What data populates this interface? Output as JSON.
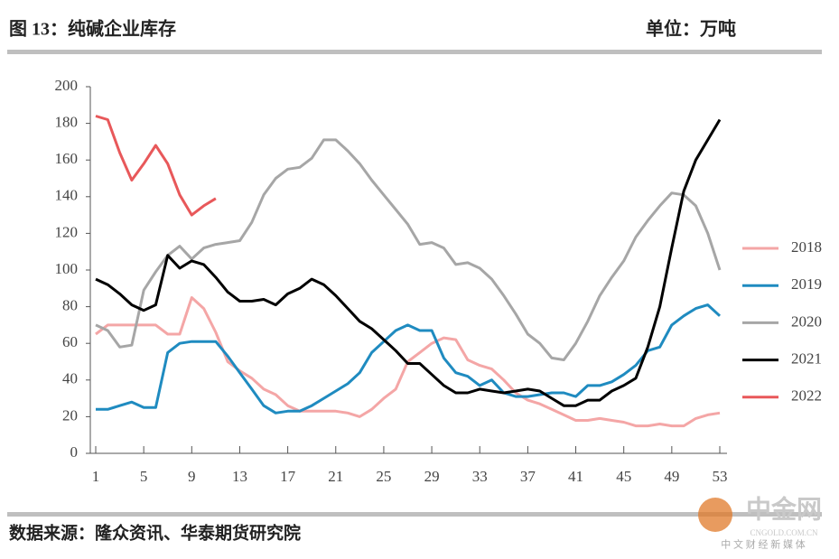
{
  "header": {
    "title": "图 13：纯碱企业库存",
    "unit": "单位：万吨"
  },
  "footer": {
    "source": "数据来源：隆众资讯、华泰期货研究院"
  },
  "watermark": {
    "brand": "中金网",
    "url": "CNGOLD.COM.CN",
    "tagline": "中 文 财 经 新 媒 体"
  },
  "chart_data": {
    "type": "line",
    "x": [
      1,
      2,
      3,
      4,
      5,
      6,
      7,
      8,
      9,
      10,
      11,
      12,
      13,
      14,
      15,
      16,
      17,
      18,
      19,
      20,
      21,
      22,
      23,
      24,
      25,
      26,
      27,
      28,
      29,
      30,
      31,
      32,
      33,
      34,
      35,
      36,
      37,
      38,
      39,
      40,
      41,
      42,
      43,
      44,
      45,
      46,
      47,
      48,
      49,
      50,
      51,
      52,
      53
    ],
    "xlim": [
      1,
      53
    ],
    "xticks": [
      1,
      5,
      9,
      13,
      17,
      21,
      25,
      29,
      33,
      37,
      41,
      45,
      49,
      53
    ],
    "ylim": [
      0,
      200
    ],
    "yticks": [
      0,
      20,
      40,
      60,
      80,
      100,
      120,
      140,
      160,
      180,
      200
    ],
    "legend": "right",
    "series": [
      {
        "name": "2018",
        "color": "#f4a6a6",
        "values": [
          65,
          70,
          70,
          70,
          70,
          70,
          65,
          65,
          85,
          79,
          66,
          50,
          45,
          41,
          35,
          32,
          26,
          23,
          23,
          23,
          23,
          22,
          20,
          24,
          30,
          35,
          50,
          55,
          60,
          63,
          62,
          51,
          48,
          46,
          40,
          33,
          29,
          27,
          24,
          21,
          18,
          18,
          19,
          18,
          17,
          15,
          15,
          16,
          15,
          15,
          19,
          21,
          22
        ]
      },
      {
        "name": "2019",
        "color": "#1f8bc0",
        "values": [
          24,
          24,
          26,
          28,
          25,
          25,
          55,
          60,
          61,
          61,
          61,
          53,
          44,
          35,
          26,
          22,
          23,
          23,
          26,
          30,
          34,
          38,
          44,
          55,
          61,
          67,
          70,
          67,
          67,
          52,
          44,
          42,
          37,
          40,
          33,
          31,
          31,
          32,
          33,
          33,
          31,
          37,
          37,
          39,
          43,
          48,
          56,
          58,
          70,
          75,
          79,
          81,
          75
        ]
      },
      {
        "name": "2020",
        "color": "#a6a6a6",
        "values": [
          70,
          67,
          58,
          59,
          89,
          99,
          108,
          113,
          106,
          112,
          114,
          115,
          116,
          126,
          141,
          150,
          155,
          156,
          161,
          171,
          171,
          165,
          158,
          149,
          141,
          133,
          125,
          114,
          115,
          112,
          103,
          104,
          101,
          95,
          86,
          76,
          65,
          60,
          52,
          51,
          60,
          72,
          86,
          96,
          105,
          118,
          127,
          135,
          142,
          141,
          135,
          120,
          100
        ]
      },
      {
        "name": "2021",
        "color": "#000000",
        "values": [
          95,
          92,
          87,
          81,
          78,
          81,
          108,
          101,
          105,
          103,
          96,
          88,
          83,
          83,
          84,
          81,
          87,
          90,
          95,
          92,
          86,
          79,
          72,
          68,
          62,
          56,
          49,
          49,
          43,
          37,
          33,
          33,
          35,
          34,
          33,
          34,
          35,
          34,
          30,
          26,
          26,
          29,
          29,
          34,
          37,
          41,
          58,
          80,
          112,
          143,
          160,
          171,
          182
        ]
      },
      {
        "name": "2022",
        "color": "#e8585a",
        "values": [
          184,
          182,
          164,
          149,
          158,
          168,
          158,
          141,
          130,
          135,
          139,
          null,
          null,
          null,
          null,
          null,
          null,
          null,
          null,
          null,
          null,
          null,
          null,
          null,
          null,
          null,
          null,
          null,
          null,
          null,
          null,
          null,
          null,
          null,
          null,
          null,
          null,
          null,
          null,
          null,
          null,
          null,
          null,
          null,
          null,
          null,
          null,
          null,
          null,
          null,
          null,
          null,
          null
        ]
      }
    ]
  }
}
